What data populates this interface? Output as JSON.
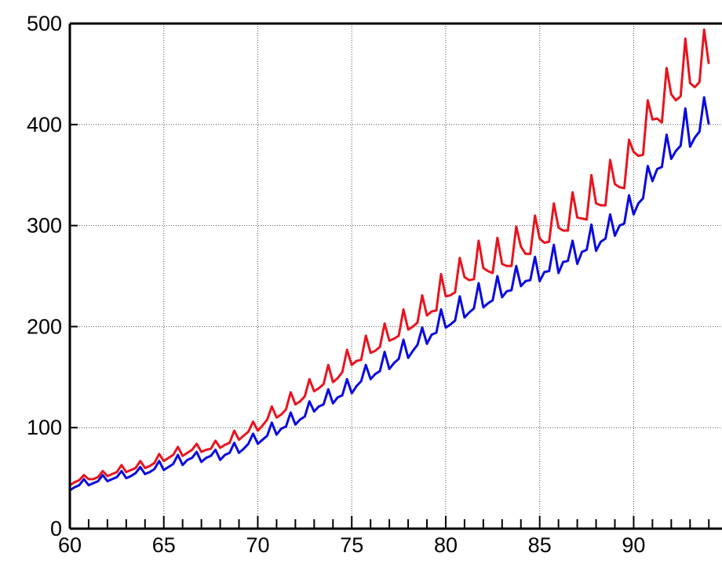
{
  "chart_data": {
    "type": "line",
    "xlabel": "",
    "ylabel": "",
    "xlim": [
      60,
      94.7
    ],
    "ylim": [
      0,
      500
    ],
    "xticks": [
      60,
      65,
      70,
      75,
      80,
      85,
      90
    ],
    "xtick_labels": [
      "60",
      "65",
      "70",
      "75",
      "80",
      "85",
      "90"
    ],
    "yticks": [
      0,
      100,
      200,
      300,
      400,
      500
    ],
    "ytick_labels": [
      "0",
      "100",
      "200",
      "300",
      "400",
      "500"
    ],
    "grid": true,
    "legend": false,
    "series": [
      {
        "color": "#e8141e",
        "points": [
          [
            60.0,
            43
          ],
          [
            60.25,
            46
          ],
          [
            60.5,
            48
          ],
          [
            60.75,
            53
          ],
          [
            61.0,
            49
          ],
          [
            61.25,
            49
          ],
          [
            61.5,
            51
          ],
          [
            61.75,
            57
          ],
          [
            62.0,
            52
          ],
          [
            62.25,
            54
          ],
          [
            62.5,
            56
          ],
          [
            62.75,
            63
          ],
          [
            63.0,
            56
          ],
          [
            63.25,
            58
          ],
          [
            63.5,
            60
          ],
          [
            63.75,
            67
          ],
          [
            64.0,
            60
          ],
          [
            64.25,
            62
          ],
          [
            64.5,
            65
          ],
          [
            64.75,
            74
          ],
          [
            65.0,
            67
          ],
          [
            65.25,
            70
          ],
          [
            65.5,
            73
          ],
          [
            65.75,
            81
          ],
          [
            66.0,
            72
          ],
          [
            66.25,
            75
          ],
          [
            66.5,
            78
          ],
          [
            66.75,
            84
          ],
          [
            67.0,
            76
          ],
          [
            67.25,
            78
          ],
          [
            67.5,
            79
          ],
          [
            67.75,
            87
          ],
          [
            68.0,
            80
          ],
          [
            68.25,
            83
          ],
          [
            68.5,
            85
          ],
          [
            68.75,
            97
          ],
          [
            69.0,
            88
          ],
          [
            69.25,
            92
          ],
          [
            69.5,
            96
          ],
          [
            69.75,
            106
          ],
          [
            70.0,
            97
          ],
          [
            70.25,
            102
          ],
          [
            70.5,
            108
          ],
          [
            70.75,
            121
          ],
          [
            71.0,
            110
          ],
          [
            71.25,
            113
          ],
          [
            71.5,
            118
          ],
          [
            71.75,
            135
          ],
          [
            72.0,
            123
          ],
          [
            72.25,
            126
          ],
          [
            72.5,
            131
          ],
          [
            72.75,
            148
          ],
          [
            73.0,
            136
          ],
          [
            73.25,
            139
          ],
          [
            73.5,
            143
          ],
          [
            73.75,
            162
          ],
          [
            74.0,
            145
          ],
          [
            74.25,
            149
          ],
          [
            74.5,
            155
          ],
          [
            74.75,
            177
          ],
          [
            75.0,
            162
          ],
          [
            75.25,
            166
          ],
          [
            75.5,
            167
          ],
          [
            75.75,
            191
          ],
          [
            76.0,
            174
          ],
          [
            76.25,
            176
          ],
          [
            76.5,
            180
          ],
          [
            76.75,
            203
          ],
          [
            77.0,
            186
          ],
          [
            77.25,
            188
          ],
          [
            77.5,
            191
          ],
          [
            77.75,
            217
          ],
          [
            78.0,
            197
          ],
          [
            78.25,
            200
          ],
          [
            78.5,
            204
          ],
          [
            78.75,
            231
          ],
          [
            79.0,
            211
          ],
          [
            79.25,
            215
          ],
          [
            79.5,
            216
          ],
          [
            79.75,
            252
          ],
          [
            80.0,
            230
          ],
          [
            80.25,
            231
          ],
          [
            80.5,
            234
          ],
          [
            80.75,
            268
          ],
          [
            81.0,
            249
          ],
          [
            81.25,
            246
          ],
          [
            81.5,
            247
          ],
          [
            81.75,
            285
          ],
          [
            82.0,
            258
          ],
          [
            82.25,
            255
          ],
          [
            82.5,
            253
          ],
          [
            82.75,
            288
          ],
          [
            83.0,
            262
          ],
          [
            83.25,
            260
          ],
          [
            83.5,
            260
          ],
          [
            83.75,
            299
          ],
          [
            84.0,
            279
          ],
          [
            84.25,
            272
          ],
          [
            84.5,
            272
          ],
          [
            84.75,
            310
          ],
          [
            85.0,
            287
          ],
          [
            85.25,
            283
          ],
          [
            85.5,
            284
          ],
          [
            85.75,
            322
          ],
          [
            86.0,
            298
          ],
          [
            86.25,
            295
          ],
          [
            86.5,
            295
          ],
          [
            86.75,
            333
          ],
          [
            87.0,
            308
          ],
          [
            87.25,
            307
          ],
          [
            87.5,
            306
          ],
          [
            87.75,
            350
          ],
          [
            88.0,
            322
          ],
          [
            88.25,
            320
          ],
          [
            88.5,
            320
          ],
          [
            88.75,
            365
          ],
          [
            89.0,
            341
          ],
          [
            89.25,
            338
          ],
          [
            89.5,
            337
          ],
          [
            89.75,
            385
          ],
          [
            90.0,
            373
          ],
          [
            90.25,
            369
          ],
          [
            90.5,
            370
          ],
          [
            90.75,
            424
          ],
          [
            91.0,
            405
          ],
          [
            91.25,
            406
          ],
          [
            91.5,
            402
          ],
          [
            91.75,
            456
          ],
          [
            92.0,
            430
          ],
          [
            92.25,
            424
          ],
          [
            92.5,
            428
          ],
          [
            92.75,
            485
          ],
          [
            93.0,
            441
          ],
          [
            93.25,
            437
          ],
          [
            93.5,
            442
          ],
          [
            93.75,
            494
          ],
          [
            94.0,
            460
          ]
        ]
      },
      {
        "color": "#0a0ae0",
        "points": [
          [
            60.0,
            38
          ],
          [
            60.25,
            41
          ],
          [
            60.5,
            43
          ],
          [
            60.75,
            49
          ],
          [
            61.0,
            43
          ],
          [
            61.25,
            45
          ],
          [
            61.5,
            47
          ],
          [
            61.75,
            53
          ],
          [
            62.0,
            47
          ],
          [
            62.25,
            49
          ],
          [
            62.5,
            51
          ],
          [
            62.75,
            57
          ],
          [
            63.0,
            50
          ],
          [
            63.25,
            52
          ],
          [
            63.5,
            55
          ],
          [
            63.75,
            61
          ],
          [
            64.0,
            54
          ],
          [
            64.25,
            56
          ],
          [
            64.5,
            59
          ],
          [
            64.75,
            67
          ],
          [
            65.0,
            58
          ],
          [
            65.25,
            61
          ],
          [
            65.5,
            64
          ],
          [
            65.75,
            73
          ],
          [
            66.0,
            63
          ],
          [
            66.25,
            68
          ],
          [
            66.5,
            70
          ],
          [
            66.75,
            76
          ],
          [
            67.0,
            66
          ],
          [
            67.25,
            70
          ],
          [
            67.5,
            72
          ],
          [
            67.75,
            78
          ],
          [
            68.0,
            68
          ],
          [
            68.25,
            73
          ],
          [
            68.5,
            75
          ],
          [
            68.75,
            85
          ],
          [
            69.0,
            75
          ],
          [
            69.25,
            79
          ],
          [
            69.5,
            84
          ],
          [
            69.75,
            94
          ],
          [
            70.0,
            84
          ],
          [
            70.25,
            88
          ],
          [
            70.5,
            92
          ],
          [
            70.75,
            105
          ],
          [
            71.0,
            93
          ],
          [
            71.25,
            99
          ],
          [
            71.5,
            101
          ],
          [
            71.75,
            115
          ],
          [
            72.0,
            103
          ],
          [
            72.25,
            108
          ],
          [
            72.5,
            111
          ],
          [
            72.75,
            126
          ],
          [
            73.0,
            116
          ],
          [
            73.25,
            121
          ],
          [
            73.5,
            123
          ],
          [
            73.75,
            138
          ],
          [
            74.0,
            124
          ],
          [
            74.25,
            130
          ],
          [
            74.5,
            132
          ],
          [
            74.75,
            148
          ],
          [
            75.0,
            134
          ],
          [
            75.25,
            141
          ],
          [
            75.5,
            146
          ],
          [
            75.75,
            162
          ],
          [
            76.0,
            148
          ],
          [
            76.25,
            153
          ],
          [
            76.5,
            156
          ],
          [
            76.75,
            175
          ],
          [
            77.0,
            158
          ],
          [
            77.25,
            164
          ],
          [
            77.5,
            168
          ],
          [
            77.75,
            187
          ],
          [
            78.0,
            169
          ],
          [
            78.25,
            176
          ],
          [
            78.5,
            182
          ],
          [
            78.75,
            199
          ],
          [
            79.0,
            183
          ],
          [
            79.25,
            192
          ],
          [
            79.5,
            194
          ],
          [
            79.75,
            217
          ],
          [
            80.0,
            199
          ],
          [
            80.25,
            202
          ],
          [
            80.5,
            206
          ],
          [
            80.75,
            230
          ],
          [
            81.0,
            209
          ],
          [
            81.25,
            214
          ],
          [
            81.5,
            218
          ],
          [
            81.75,
            243
          ],
          [
            82.0,
            219
          ],
          [
            82.25,
            223
          ],
          [
            82.5,
            226
          ],
          [
            82.75,
            250
          ],
          [
            83.0,
            229
          ],
          [
            83.25,
            235
          ],
          [
            83.5,
            236
          ],
          [
            83.75,
            260
          ],
          [
            84.0,
            240
          ],
          [
            84.25,
            245
          ],
          [
            84.5,
            246
          ],
          [
            84.75,
            269
          ],
          [
            85.0,
            245
          ],
          [
            85.25,
            254
          ],
          [
            85.5,
            255
          ],
          [
            85.75,
            281
          ],
          [
            86.0,
            253
          ],
          [
            86.25,
            264
          ],
          [
            86.5,
            265
          ],
          [
            86.75,
            285
          ],
          [
            87.0,
            262
          ],
          [
            87.25,
            274
          ],
          [
            87.5,
            276
          ],
          [
            87.75,
            301
          ],
          [
            88.0,
            275
          ],
          [
            88.25,
            284
          ],
          [
            88.5,
            287
          ],
          [
            88.75,
            311
          ],
          [
            89.0,
            290
          ],
          [
            89.25,
            300
          ],
          [
            89.5,
            302
          ],
          [
            89.75,
            330
          ],
          [
            90.0,
            311
          ],
          [
            90.25,
            322
          ],
          [
            90.5,
            327
          ],
          [
            90.75,
            359
          ],
          [
            91.0,
            344
          ],
          [
            91.25,
            356
          ],
          [
            91.5,
            358
          ],
          [
            91.75,
            390
          ],
          [
            92.0,
            366
          ],
          [
            92.25,
            374
          ],
          [
            92.5,
            379
          ],
          [
            92.75,
            416
          ],
          [
            93.0,
            378
          ],
          [
            93.25,
            387
          ],
          [
            93.5,
            393
          ],
          [
            93.75,
            427
          ],
          [
            94.0,
            400
          ]
        ]
      }
    ]
  }
}
